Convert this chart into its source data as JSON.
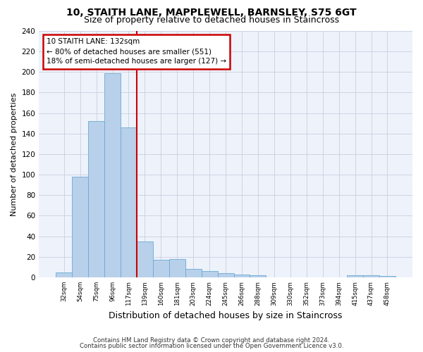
{
  "title1": "10, STAITH LANE, MAPPLEWELL, BARNSLEY, S75 6GT",
  "title2": "Size of property relative to detached houses in Staincross",
  "xlabel": "Distribution of detached houses by size in Staincross",
  "ylabel": "Number of detached properties",
  "categories": [
    "32sqm",
    "54sqm",
    "75sqm",
    "96sqm",
    "117sqm",
    "139sqm",
    "160sqm",
    "181sqm",
    "203sqm",
    "224sqm",
    "245sqm",
    "266sqm",
    "288sqm",
    "309sqm",
    "330sqm",
    "352sqm",
    "373sqm",
    "394sqm",
    "415sqm",
    "437sqm",
    "458sqm"
  ],
  "values": [
    5,
    98,
    152,
    199,
    146,
    35,
    17,
    18,
    8,
    6,
    4,
    3,
    2,
    0,
    0,
    0,
    0,
    0,
    2,
    2,
    1
  ],
  "bar_color": "#b8d0ea",
  "bar_edge_color": "#6aaad4",
  "vline_x": 4.5,
  "vline_color": "#cc0000",
  "annotation_line1": "10 STAITH LANE: 132sqm",
  "annotation_line2": "← 80% of detached houses are smaller (551)",
  "annotation_line3": "18% of semi-detached houses are larger (127) →",
  "annotation_box_color": "#cc0000",
  "ylim": [
    0,
    240
  ],
  "yticks": [
    0,
    20,
    40,
    60,
    80,
    100,
    120,
    140,
    160,
    180,
    200,
    220,
    240
  ],
  "footer1": "Contains HM Land Registry data © Crown copyright and database right 2024.",
  "footer2": "Contains public sector information licensed under the Open Government Licence v3.0.",
  "bg_color": "#eef2fb",
  "grid_color": "#c8cfe0",
  "title1_fontsize": 10,
  "title2_fontsize": 9,
  "ylabel_fontsize": 8,
  "xlabel_fontsize": 9
}
